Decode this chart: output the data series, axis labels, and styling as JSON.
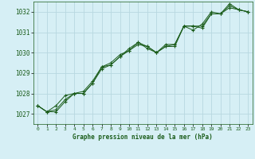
{
  "title": "Graphe pression niveau de la mer (hPa)",
  "background_color": "#d6eff5",
  "grid_color": "#b8d8e0",
  "line_color": "#1a5c1a",
  "xlim": [
    -0.5,
    23.5
  ],
  "ylim": [
    1026.5,
    1032.5
  ],
  "yticks": [
    1027,
    1028,
    1029,
    1030,
    1031,
    1032
  ],
  "xticks": [
    0,
    1,
    2,
    3,
    4,
    5,
    6,
    7,
    8,
    9,
    10,
    11,
    12,
    13,
    14,
    15,
    16,
    17,
    18,
    19,
    20,
    21,
    22,
    23
  ],
  "series": [
    [
      1027.4,
      1027.1,
      1027.1,
      1027.6,
      1028.0,
      1028.0,
      1028.5,
      1029.3,
      1029.4,
      1029.8,
      1030.2,
      1030.5,
      1030.3,
      1030.0,
      1030.3,
      1030.4,
      1031.3,
      1031.3,
      1031.2,
      1031.9,
      1031.9,
      1032.2,
      1032.1,
      1032.0
    ],
    [
      1027.4,
      1027.1,
      1027.2,
      1027.7,
      1028.0,
      1028.0,
      1028.5,
      1029.2,
      1029.4,
      1029.8,
      1030.1,
      1030.4,
      1030.3,
      1030.0,
      1030.4,
      1030.4,
      1031.3,
      1031.3,
      1031.3,
      1031.9,
      1031.9,
      1032.3,
      1032.1,
      1032.0
    ],
    [
      1027.4,
      1027.1,
      1027.4,
      1027.9,
      1028.0,
      1028.1,
      1028.6,
      1029.3,
      1029.5,
      1029.9,
      1030.1,
      1030.5,
      1030.2,
      1030.0,
      1030.3,
      1030.3,
      1031.3,
      1031.1,
      1031.4,
      1032.0,
      1031.9,
      1032.4,
      1032.1,
      1032.0
    ]
  ]
}
